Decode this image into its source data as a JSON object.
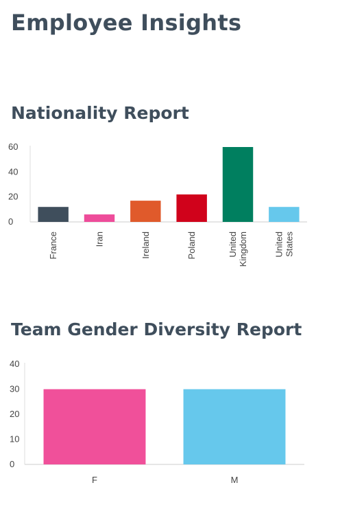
{
  "page": {
    "title": "Employee Insights"
  },
  "chart_data": [
    {
      "type": "bar",
      "title": "Nationality Report",
      "categories": [
        "France",
        "Iran",
        "Ireland",
        "Poland",
        "United Kingdom",
        "United States"
      ],
      "category_lines": [
        [
          "France"
        ],
        [
          "Iran"
        ],
        [
          "Ireland"
        ],
        [
          "Poland"
        ],
        [
          "United",
          "Kingdom"
        ],
        [
          "United",
          "States"
        ]
      ],
      "values": [
        12,
        6,
        17,
        22,
        60,
        12
      ],
      "colors": [
        "#3f4e5c",
        "#ee4c9a",
        "#e05a2b",
        "#d0021b",
        "#007f5f",
        "#66c8ec"
      ],
      "ylim": [
        0,
        60
      ],
      "yticks": [
        0,
        20,
        40,
        60
      ],
      "xlabel": "",
      "ylabel": "",
      "tick_rotation": "vertical",
      "grid": false,
      "legend": "none"
    },
    {
      "type": "bar",
      "title": "Team Gender Diversity Report",
      "categories": [
        "F",
        "M"
      ],
      "category_lines": [
        [
          "F"
        ],
        [
          "M"
        ]
      ],
      "values": [
        30,
        30
      ],
      "colors": [
        "#f0509a",
        "#66c8ec"
      ],
      "ylim": [
        0,
        40
      ],
      "yticks": [
        0,
        10,
        20,
        30,
        40
      ],
      "xlabel": "",
      "ylabel": "",
      "tick_rotation": "horizontal",
      "grid": false,
      "legend": "none"
    }
  ]
}
